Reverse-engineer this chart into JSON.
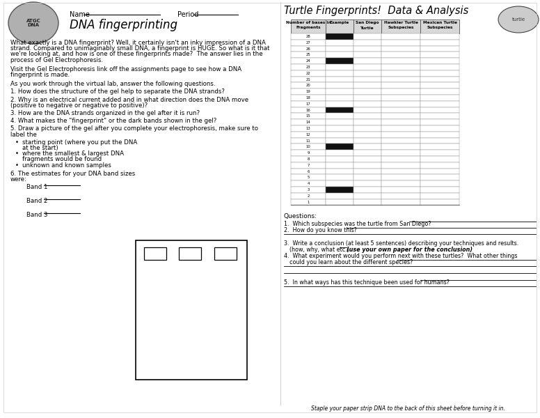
{
  "title": "DNA fingerprinting",
  "right_title": "Turtle Fingerprints!  Data & Analysis",
  "name_label": "Name",
  "period_label": "Period",
  "para1_lines": [
    "What exactly is a DNA fingerprint? Well, it certainly isn't an inky impression of a DNA",
    "strand. Compared to unimaginably small DNA, a fingerprint is HUGE. So what is it that",
    "we're looking at, and how is one of these fingerprints made?  The answer lies in the",
    "process of Gel Electrophoresis."
  ],
  "para2_lines": [
    "Visit the Gel Electrophoresis link off the assignments page to see how a DNA",
    "fingerprint is made."
  ],
  "para3": "As you work through the virtual lab, answer the following questions.",
  "q1": "1. How does the structure of the gel help to separate the DNA strands?",
  "q2_lines": [
    "2. Why is an electrical current added and in what direction does the DNA move",
    "(positive to negative or negative to positive)?"
  ],
  "q3": "3. How are the DNA strands organized in the gel after it is run?",
  "q4": "4. What makes the \"fingerprint\" or the dark bands shown in the gel?",
  "q5_lines": [
    "5. Draw a picture of the gel after you complete your electrophoresis, make sure to",
    "label the"
  ],
  "bullets": [
    [
      "starting point (where you put the DNA",
      "at the start)"
    ],
    [
      "where the smallest & largest DNA",
      "fragments would be found"
    ],
    [
      "unknown and known samples"
    ]
  ],
  "q6_lines": [
    "6. The estimates for your DNA band sizes",
    "were:"
  ],
  "band_labels": [
    "Band 1",
    "Band 2",
    "Band 3"
  ],
  "table_header": [
    "Number of bases in\nFragments",
    "Example",
    "San Diego\nTurtle",
    "Hawkler Turtle\nSubspecies",
    "Mexican Turtle\nSubspecies"
  ],
  "table_rows": [
    28,
    27,
    26,
    25,
    24,
    23,
    22,
    21,
    20,
    19,
    18,
    17,
    16,
    15,
    14,
    13,
    12,
    11,
    10,
    9,
    8,
    7,
    6,
    5,
    4,
    3,
    2,
    1
  ],
  "example_bands": [
    28,
    24,
    16,
    10,
    3
  ],
  "q_section_label": "Questions:",
  "q_right": [
    "1.  Which subspecies was the turtle from San Diego?",
    "2.  How do you know this?",
    "3.  Write a conclusion (at least 5 sentences) describing your techniques and results.",
    "    (how, why, what etc.)       (use your own paper for the conclusion)",
    "4.  What experiment would you perform next with these turtles?  What other things",
    "    could you learn about the different species?",
    "5.  In what ways has this technique been used for humans?"
  ],
  "staple_note": "Staple your paper strip DNA to the back of this sheet before turning it in."
}
